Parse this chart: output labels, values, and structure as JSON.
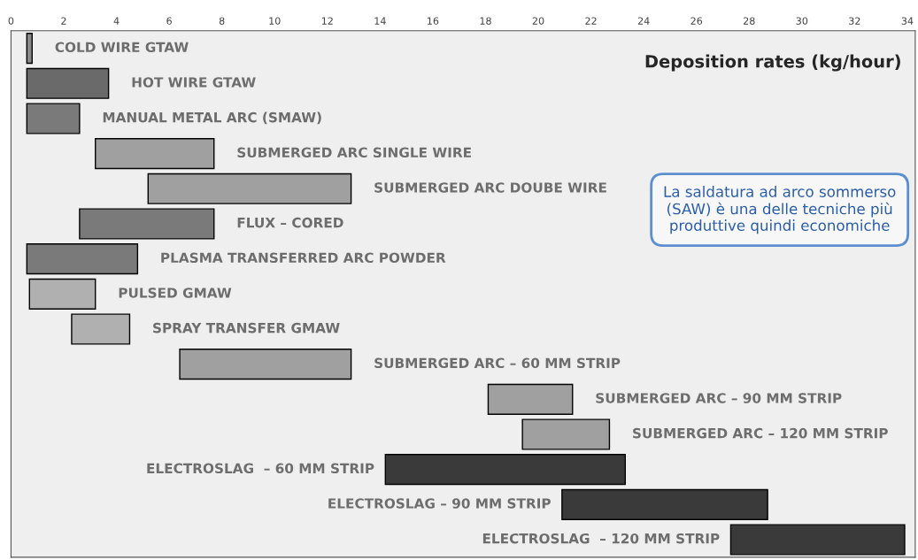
{
  "chart_data": {
    "type": "bar",
    "orientation": "horizontal",
    "title": "Deposition rates (kg/hour)",
    "categories": [
      "COLD WIRE GTAW",
      "HOT WIRE GTAW",
      "MANUAL METAL ARC (SMAW)",
      "SUBMERGED ARC SINGLE WIRE",
      "SUBMERGED ARC DOUBE WIRE",
      "FLUX – CORED",
      "PLASMA TRANSFERRED ARC POWDER",
      "PULSED GMAW",
      "SPRAY TRANSFER GMAW",
      "SUBMERGED ARC – 60 MM STRIP",
      "SUBMERGED ARC – 90 MM STRIP",
      "SUBMERGED ARC – 120 MM STRIP",
      "ELECTROSLAG  – 60 MM STRIP",
      "ELECTROSLAG – 90 MM STRIP",
      "ELECTROSLAG  – 120 MM STRIP"
    ],
    "base": [
      0.6,
      0.6,
      0.6,
      3.2,
      5.2,
      2.6,
      0.6,
      0.7,
      2.3,
      6.4,
      18.1,
      19.4,
      14.2,
      20.9,
      27.3
    ],
    "values": [
      0.2,
      3.1,
      2.0,
      4.5,
      7.7,
      5.1,
      4.2,
      2.5,
      2.2,
      6.5,
      3.2,
      3.3,
      9.1,
      7.8,
      6.6
    ],
    "colors": [
      "#8a8a8a",
      "#6a6a6a",
      "#7a7a7a",
      "#a0a0a0",
      "#a0a0a0",
      "#7a7a7a",
      "#7a7a7a",
      "#b0b0b0",
      "#b0b0b0",
      "#a0a0a0",
      "#a0a0a0",
      "#a0a0a0",
      "#3a3a3a",
      "#3a3a3a",
      "#3a3a3a"
    ],
    "xlim": [
      0,
      34.3
    ],
    "xticks": [
      0,
      2,
      4,
      6,
      8,
      10,
      12,
      14,
      16,
      18,
      20,
      22,
      24,
      26,
      28,
      30,
      32,
      34
    ],
    "tick_labels": "x",
    "grid": false,
    "annotations": [
      "La saldatura ad arco sommerso (SAW) è una delle tecniche più produttive quindi economiche"
    ]
  }
}
